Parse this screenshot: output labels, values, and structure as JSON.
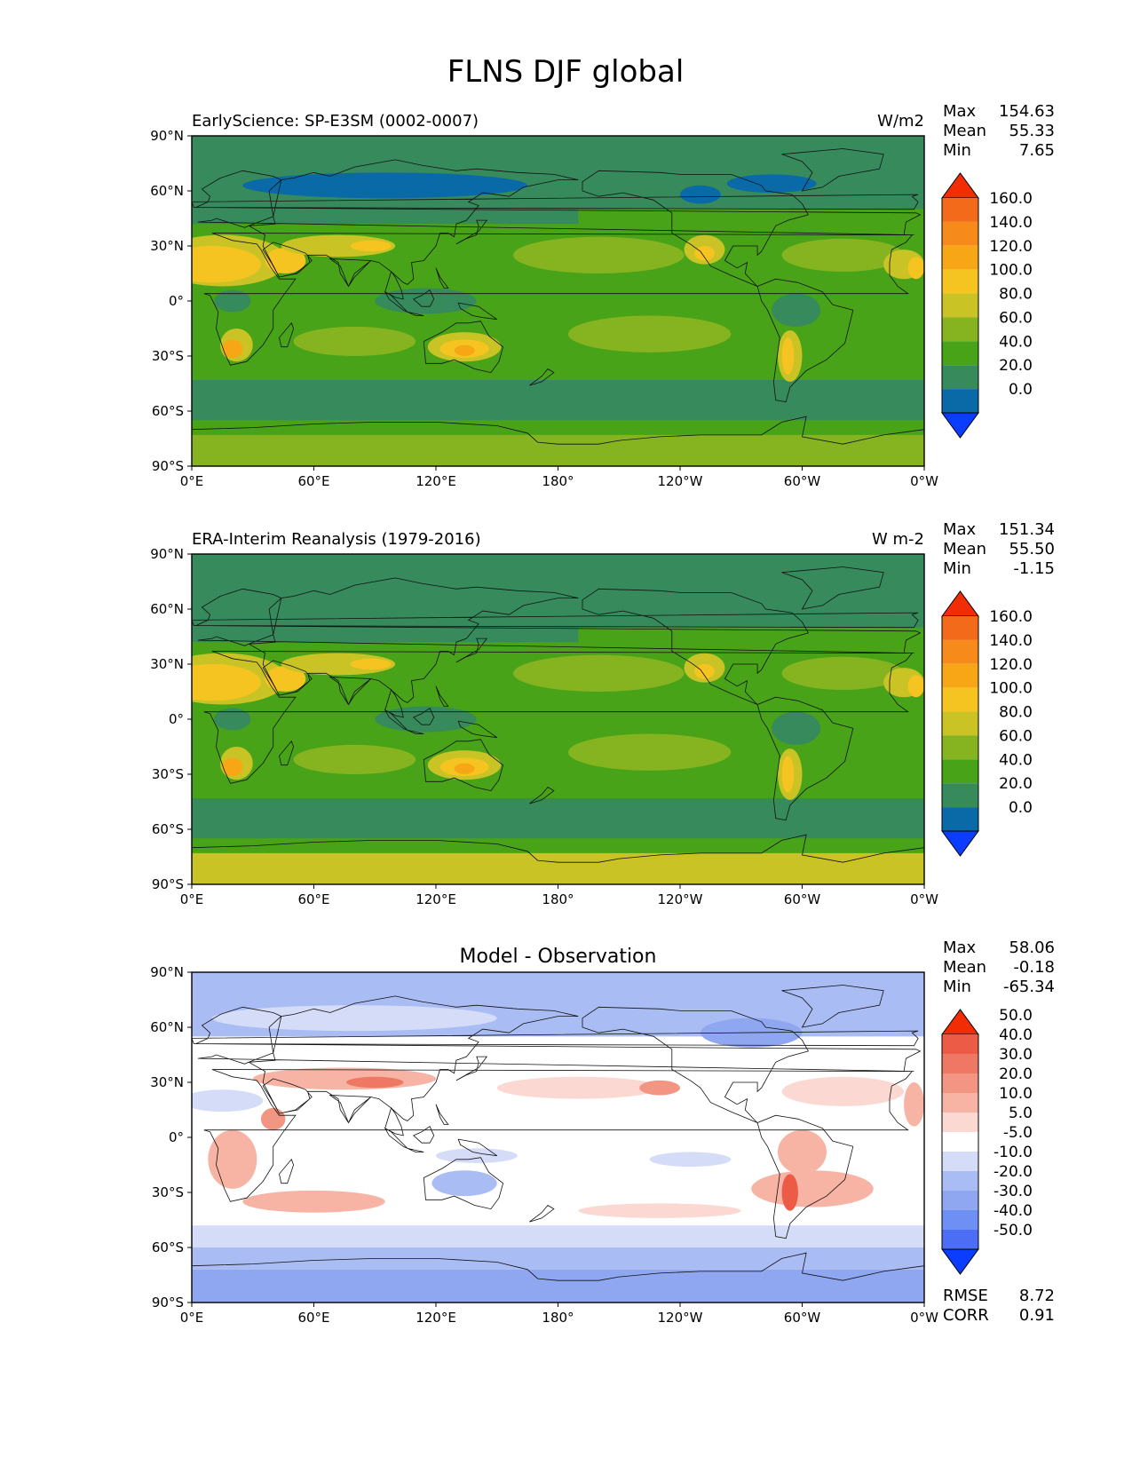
{
  "figure_title": "FLNS DJF global",
  "colors": {
    "abs": [
      "#0a3dff",
      "#0a6aa8",
      "#378a5c",
      "#48a318",
      "#86b421",
      "#c9c325",
      "#f6c420",
      "#f7a716",
      "#f68a1b",
      "#f36b1a",
      "#f22d06"
    ],
    "diff": [
      "#0a3dff",
      "#4b6ef5",
      "#6e8ff4",
      "#8fa6f1",
      "#a9bcf3",
      "#d5dcf7",
      "#ffffff",
      "#fbd8d2",
      "#f7b3a4",
      "#f29582",
      "#ee7863",
      "#ec5b45",
      "#f22d06"
    ],
    "frame": "#000000",
    "land_outline": "#111111"
  },
  "chart_data": [
    {
      "type": "heatmap",
      "panel": "test",
      "title": "EarlyScience: SP-E3SM (0002-0007)",
      "units": "W/m2",
      "stats": [
        {
          "label": "Max",
          "value": "154.63"
        },
        {
          "label": "Mean",
          "value": "55.33"
        },
        {
          "label": "Min",
          "value": "7.65"
        }
      ],
      "xticks": [
        "0°E",
        "60°E",
        "120°E",
        "180°",
        "120°W",
        "60°W",
        "0°W"
      ],
      "yticks": [
        "90°N",
        "60°N",
        "30°N",
        "0°",
        "30°S",
        "60°S",
        "90°S"
      ],
      "colorbar_levels": [
        "0.0",
        "20.0",
        "40.0",
        "60.0",
        "80.0",
        "100.0",
        "120.0",
        "140.0",
        "160.0"
      ],
      "colorbar_extend": "both",
      "xlim": [
        0,
        360
      ],
      "ylim": [
        -90,
        90
      ]
    },
    {
      "type": "heatmap",
      "panel": "reference",
      "title": "ERA-Interim Reanalysis (1979-2016)",
      "units": "W m-2",
      "stats": [
        {
          "label": "Max",
          "value": "151.34"
        },
        {
          "label": "Mean",
          "value": "55.50"
        },
        {
          "label": "Min",
          "value": "-1.15"
        }
      ],
      "xticks": [
        "0°E",
        "60°E",
        "120°E",
        "180°",
        "120°W",
        "60°W",
        "0°W"
      ],
      "yticks": [
        "90°N",
        "60°N",
        "30°N",
        "0°",
        "30°S",
        "60°S",
        "90°S"
      ],
      "colorbar_levels": [
        "0.0",
        "20.0",
        "40.0",
        "60.0",
        "80.0",
        "100.0",
        "120.0",
        "140.0",
        "160.0"
      ],
      "colorbar_extend": "both",
      "xlim": [
        0,
        360
      ],
      "ylim": [
        -90,
        90
      ]
    },
    {
      "type": "heatmap",
      "panel": "difference",
      "title": "Model - Observation",
      "units": "",
      "stats": [
        {
          "label": "Max",
          "value": "58.06"
        },
        {
          "label": "Mean",
          "value": "-0.18"
        },
        {
          "label": "Min",
          "value": "-65.34"
        }
      ],
      "metrics": [
        {
          "label": "RMSE",
          "value": "8.72"
        },
        {
          "label": "CORR",
          "value": "0.91"
        }
      ],
      "xticks": [
        "0°E",
        "60°E",
        "120°E",
        "180°",
        "120°W",
        "60°W",
        "0°W"
      ],
      "yticks": [
        "90°N",
        "60°N",
        "30°N",
        "0°",
        "30°S",
        "60°S",
        "90°S"
      ],
      "colorbar_levels": [
        "-50.0",
        "-40.0",
        "-30.0",
        "-20.0",
        "-10.0",
        "-5.0",
        "5.0",
        "10.0",
        "20.0",
        "30.0",
        "40.0",
        "50.0"
      ],
      "colorbar_extend": "both",
      "xlim": [
        0,
        360
      ],
      "ylim": [
        -90,
        90
      ]
    }
  ]
}
